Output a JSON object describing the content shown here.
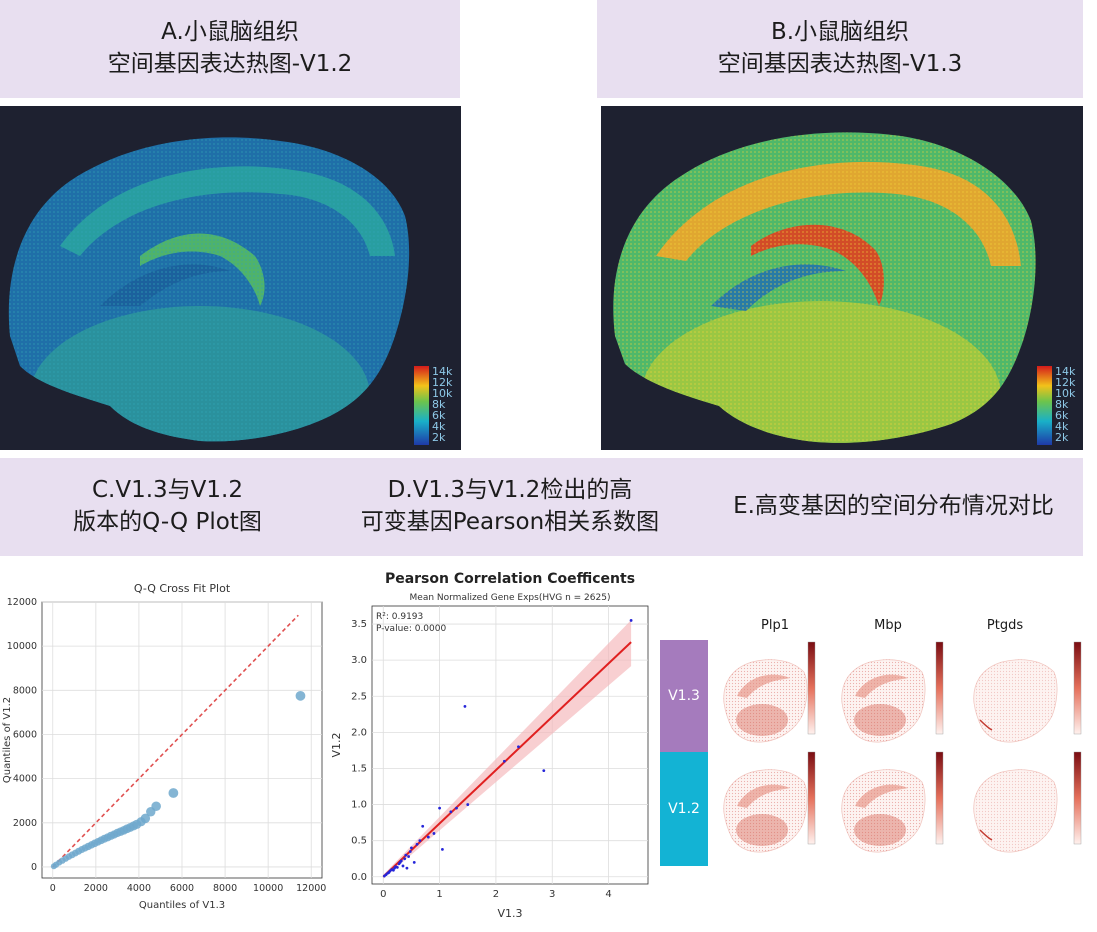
{
  "panels": {
    "a": {
      "line1": "A.小鼠脑组织",
      "line2": "空间基因表达热图-V1.2"
    },
    "b": {
      "line1": "B.小鼠脑组织",
      "line2": "空间基因表达热图-V1.3"
    },
    "c": {
      "line1": "C.V1.3与V1.2",
      "line2": "版本的Q-Q Plot图"
    },
    "d": {
      "line1": "D.V1.3与V1.2检出的高",
      "line2": "可变基因Pearson相关系数图"
    },
    "e": {
      "line1": "E.高变基因的空间分布情况对比"
    }
  },
  "heatmap_legend": [
    "14k",
    "12k",
    "10k",
    "8k",
    "6k",
    "4k",
    "2k"
  ],
  "colors": {
    "banner": "#e8dff0",
    "heat_bg": "#1e2130",
    "v13_bar": "#a57bbd",
    "v12_bar": "#13b3d4",
    "qq_point": "#6fa8cc",
    "qq_line": "#e05050",
    "fit_line": "#e02020",
    "ci_band": "#f5b5b8",
    "scatter_point": "#2626d9"
  },
  "chart_data": [
    {
      "type": "scatter",
      "title": "Q-Q Cross Fit Plot",
      "xlabel": "Quantiles of V1.3",
      "ylabel": "Quantiles of V1.2",
      "xlim": [
        -500,
        12500
      ],
      "ylim": [
        -500,
        12000
      ],
      "xticks": [
        0,
        2000,
        4000,
        6000,
        8000,
        10000,
        12000
      ],
      "yticks": [
        0,
        2000,
        4000,
        6000,
        8000,
        10000,
        12000
      ],
      "grid": true,
      "reference_line": {
        "x": [
          0,
          11400
        ],
        "y": [
          0,
          11400
        ]
      },
      "points": {
        "x": [
          50,
          150,
          300,
          450,
          600,
          750,
          900,
          1050,
          1200,
          1350,
          1500,
          1650,
          1800,
          1950,
          2100,
          2250,
          2400,
          2550,
          2700,
          2850,
          3000,
          3150,
          3300,
          3450,
          3600,
          3750,
          3900,
          4100,
          4300,
          4550,
          4800,
          5600,
          11500
        ],
        "y": [
          30,
          100,
          200,
          290,
          380,
          470,
          550,
          630,
          710,
          790,
          860,
          930,
          1000,
          1070,
          1140,
          1210,
          1280,
          1340,
          1410,
          1470,
          1540,
          1600,
          1660,
          1730,
          1790,
          1860,
          1930,
          2050,
          2200,
          2500,
          2750,
          3350,
          7750
        ]
      }
    },
    {
      "type": "scatter",
      "title": "Pearson Correlation Coefficents",
      "subtitle": "Mean Normalized Gene Exps(HVG n = 2625)",
      "xlabel": "V1.3",
      "ylabel": "V1.2",
      "xlim": [
        -0.2,
        4.7
      ],
      "ylim": [
        -0.1,
        3.75
      ],
      "xticks": [
        0,
        1,
        2,
        3,
        4
      ],
      "yticks": [
        0.0,
        0.5,
        1.0,
        1.5,
        2.0,
        2.5,
        3.0,
        3.5
      ],
      "grid": true,
      "annotation": {
        "r2": "R²: 0.9193",
        "pvalue": "P-value: 0.0000"
      },
      "fit_line": {
        "x": [
          0,
          4.4
        ],
        "y": [
          0.0,
          3.25
        ]
      },
      "points": {
        "x": [
          0.02,
          0.05,
          0.08,
          0.1,
          0.12,
          0.15,
          0.18,
          0.2,
          0.22,
          0.25,
          0.28,
          0.3,
          0.32,
          0.35,
          0.38,
          0.4,
          0.42,
          0.45,
          0.48,
          0.5,
          0.55,
          0.6,
          0.65,
          0.7,
          0.8,
          0.9,
          1.0,
          1.05,
          1.2,
          1.3,
          1.45,
          1.5,
          2.15,
          2.4,
          2.85,
          4.4
        ],
        "y": [
          0.01,
          0.03,
          0.05,
          0.06,
          0.08,
          0.1,
          0.09,
          0.12,
          0.14,
          0.13,
          0.18,
          0.2,
          0.22,
          0.15,
          0.25,
          0.3,
          0.12,
          0.28,
          0.35,
          0.4,
          0.2,
          0.45,
          0.5,
          0.7,
          0.55,
          0.6,
          0.95,
          0.38,
          0.9,
          0.95,
          2.36,
          1.0,
          1.6,
          1.8,
          1.47,
          3.55
        ]
      }
    },
    {
      "type": "heatmap",
      "genes": [
        "Plp1",
        "Mbp",
        "Ptgds"
      ],
      "rows": [
        "V1.3",
        "V1.2"
      ]
    }
  ]
}
